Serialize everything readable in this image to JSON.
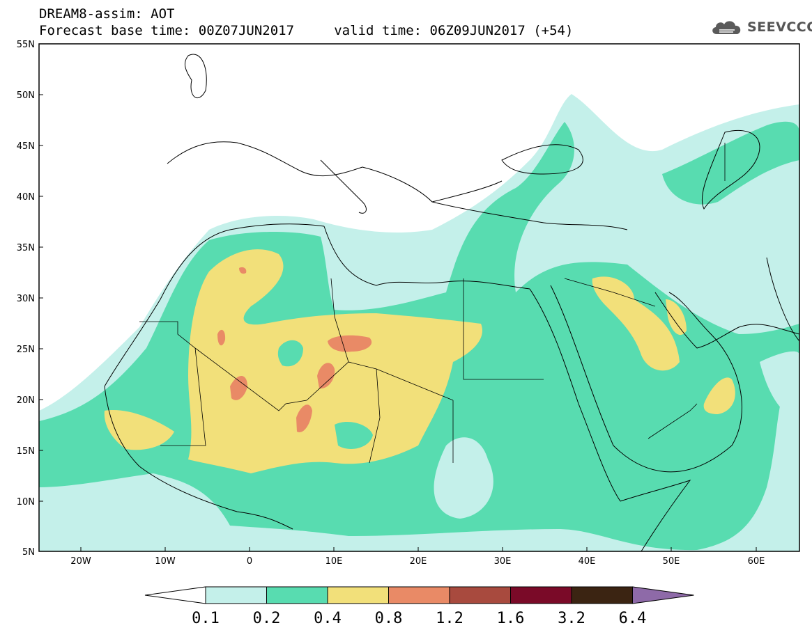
{
  "header": {
    "line1": "DREAM8-assim: AOT",
    "line2": "Forecast base time: 00Z07JUN2017     valid time: 06Z09JUN2017 (+54)",
    "logo_text": "SEEVCCC",
    "logo_icon": "cloud-icon"
  },
  "map": {
    "lon_range": [
      -25,
      65
    ],
    "lat_range": [
      5,
      55
    ],
    "lat_labels": [
      "55N",
      "50N",
      "45N",
      "40N",
      "35N",
      "30N",
      "25N",
      "20N",
      "15N",
      "10N",
      "5N"
    ],
    "lon_labels": [
      "20W",
      "10W",
      "0",
      "10E",
      "20E",
      "30E",
      "40E",
      "50E",
      "60E"
    ],
    "ocean_color": "#ffffff"
  },
  "colorbar": {
    "levels": [
      "0.1",
      "0.2",
      "0.4",
      "0.8",
      "1.2",
      "1.6",
      "3.2",
      "6.4"
    ],
    "colors": [
      "#c4f0ea",
      "#58dcb0",
      "#f2e07a",
      "#e98a66",
      "#a84a3e",
      "#7a0a28",
      "#3b2412",
      "#8e6aa8"
    ]
  }
}
